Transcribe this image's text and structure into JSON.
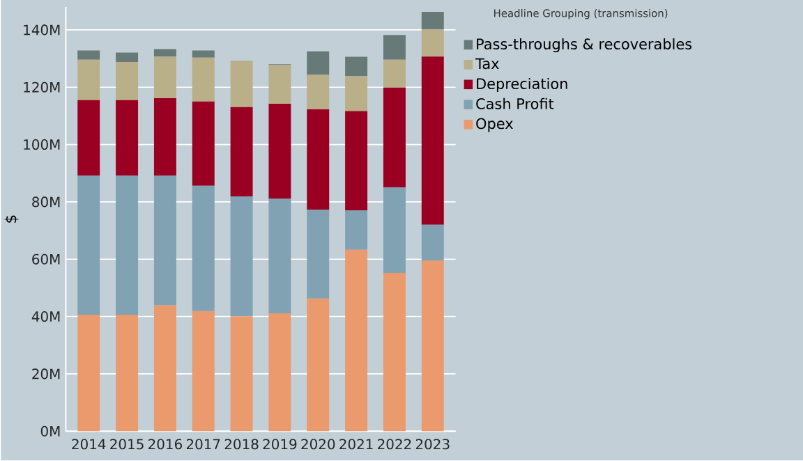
{
  "chart_data": {
    "type": "bar",
    "stacked": true,
    "ylabel": "$",
    "legend_title": "Headline Grouping (transmission)",
    "legend": "right",
    "grid": "y",
    "categories": [
      "2014",
      "2015",
      "2016",
      "2017",
      "2018",
      "2019",
      "2020",
      "2021",
      "2022",
      "2023"
    ],
    "series": [
      {
        "name": "Opex",
        "color": "#eb9a6e",
        "values": [
          40.6,
          40.6,
          43.9,
          41.9,
          40.1,
          41.1,
          46.3,
          63.3,
          55.2,
          59.5
        ]
      },
      {
        "name": "Cash Profit",
        "color": "#80a2b3",
        "values": [
          48.6,
          48.6,
          45.3,
          43.7,
          41.8,
          40.0,
          31.0,
          13.7,
          29.8,
          12.5
        ]
      },
      {
        "name": "Depreciation",
        "color": "#9a0022",
        "values": [
          26.3,
          26.3,
          27.0,
          29.4,
          31.2,
          33.1,
          35.0,
          34.7,
          34.9,
          58.7
        ]
      },
      {
        "name": "Tax",
        "color": "#b9b08a",
        "values": [
          14.1,
          13.3,
          14.5,
          15.3,
          16.2,
          13.5,
          12.0,
          12.2,
          9.7,
          9.4
        ]
      },
      {
        "name": "Pass-throughs & recoverables",
        "color": "#687a77",
        "values": [
          3.2,
          3.3,
          2.6,
          2.5,
          0,
          0.3,
          8.2,
          6.7,
          8.6,
          6.2
        ]
      }
    ],
    "ylim": [
      0,
      148
    ],
    "yticks": [
      {
        "value": 0,
        "label": "0M"
      },
      {
        "value": 20,
        "label": "20M"
      },
      {
        "value": 40,
        "label": "40M"
      },
      {
        "value": 60,
        "label": "60M"
      },
      {
        "value": 80,
        "label": "80M"
      },
      {
        "value": 100,
        "label": "100M"
      },
      {
        "value": 120,
        "label": "120M"
      },
      {
        "value": 140,
        "label": "140M"
      }
    ]
  }
}
